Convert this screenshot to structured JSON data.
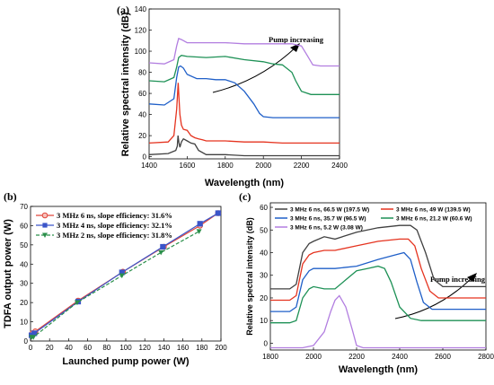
{
  "chart_data": [
    {
      "id": "a",
      "panel_label": "(a)",
      "type": "line",
      "xlabel": "Wavelength (nm)",
      "ylabel": "Relative spectral intensity (dB)",
      "xlim": [
        1400,
        2400
      ],
      "ylim": [
        -2,
        140
      ],
      "xticks": [
        1400,
        1600,
        1800,
        2000,
        2200,
        2400
      ],
      "yticks": [
        0,
        20,
        40,
        60,
        80,
        100,
        120,
        140
      ],
      "annotation": "Pump increasing",
      "series": [
        {
          "color": "#404040",
          "x": [
            1400,
            1500,
            1540,
            1548,
            1552,
            1556,
            1562,
            1570,
            1580,
            1600,
            1620,
            1640,
            1660,
            1700,
            1800,
            1900,
            2000,
            2100,
            2200,
            2300,
            2400
          ],
          "y": [
            2,
            3,
            6,
            10,
            20,
            14,
            9,
            14,
            17,
            15,
            13,
            12,
            6,
            2,
            2,
            1,
            1,
            1,
            1,
            1,
            1
          ]
        },
        {
          "color": "#e5331f",
          "x": [
            1400,
            1500,
            1530,
            1545,
            1553,
            1557,
            1562,
            1570,
            1580,
            1600,
            1620,
            1640,
            1660,
            1680,
            1700,
            1800,
            1900,
            2000,
            2100,
            2200,
            2300,
            2400
          ],
          "y": [
            13,
            14,
            20,
            45,
            70,
            55,
            40,
            30,
            26,
            25,
            20,
            18,
            17,
            16,
            15,
            15,
            14,
            14,
            13,
            13,
            13,
            13
          ]
        },
        {
          "color": "#1f5fc8",
          "x": [
            1400,
            1480,
            1530,
            1545,
            1555,
            1565,
            1580,
            1600,
            1650,
            1700,
            1750,
            1800,
            1850,
            1900,
            1950,
            1980,
            2000,
            2050,
            2100,
            2200,
            2300,
            2400
          ],
          "y": [
            50,
            49,
            55,
            75,
            85,
            86,
            84,
            78,
            74,
            74,
            73,
            73,
            70,
            62,
            50,
            41,
            38,
            37,
            37,
            37,
            37,
            37
          ]
        },
        {
          "color": "#1e9156",
          "x": [
            1400,
            1480,
            1530,
            1545,
            1555,
            1570,
            1600,
            1700,
            1800,
            1900,
            2000,
            2050,
            2100,
            2150,
            2170,
            2200,
            2250,
            2300,
            2400
          ],
          "y": [
            72,
            71,
            75,
            85,
            94,
            96,
            95,
            94,
            95,
            92,
            90,
            88,
            87,
            80,
            72,
            62,
            59,
            59,
            59
          ]
        },
        {
          "color": "#b27ee0",
          "x": [
            1400,
            1480,
            1530,
            1545,
            1555,
            1570,
            1600,
            1700,
            1800,
            1900,
            2000,
            2100,
            2150,
            2200,
            2230,
            2260,
            2300,
            2400
          ],
          "y": [
            89,
            88,
            92,
            105,
            112,
            111,
            108,
            108,
            108,
            107,
            107,
            107,
            107,
            105,
            96,
            87,
            86,
            86
          ]
        }
      ]
    },
    {
      "id": "b",
      "panel_label": "(b)",
      "type": "line",
      "xlabel": "Launched pump power (W)",
      "ylabel": "TDFA output power (W)",
      "xlim": [
        0,
        200
      ],
      "ylim": [
        0,
        70
      ],
      "xticks": [
        0,
        20,
        40,
        60,
        80,
        100,
        120,
        140,
        160,
        180,
        200
      ],
      "yticks": [
        0,
        10,
        20,
        30,
        40,
        50,
        60,
        70
      ],
      "series": [
        {
          "name": "3 MHz 6 ns, slope efficiency: 31.6%",
          "color": "#e0453a",
          "marker": "circle",
          "x": [
            2,
            5,
            50,
            97,
            140,
            178,
            197
          ],
          "y": [
            4,
            5,
            21,
            36,
            49,
            60,
            66.5
          ]
        },
        {
          "name": "3 MHz 4 ns, slope efficiency: 32.1%",
          "color": "#3b55c9",
          "marker": "square",
          "x": [
            1,
            4,
            50,
            96,
            139,
            178,
            197
          ],
          "y": [
            3,
            4,
            20.5,
            35.7,
            49,
            61,
            66.5
          ]
        },
        {
          "name": "3 MHz 2 ns, slope efficiency: 31.8%",
          "color": "#2a8f4a",
          "marker": "triangle-down",
          "x": [
            1,
            3,
            49,
            96,
            137,
            177
          ],
          "y": [
            2,
            2,
            20,
            34,
            46,
            57
          ]
        }
      ]
    },
    {
      "id": "c",
      "panel_label": "(c)",
      "type": "line",
      "xlabel": "Wavelength (nm)",
      "ylabel": "Relative spectral intensity (dB)",
      "xlim": [
        1800,
        2800
      ],
      "ylim": [
        -3,
        62
      ],
      "xticks": [
        1800,
        2000,
        2200,
        2400,
        2600,
        2800
      ],
      "yticks": [
        0,
        10,
        20,
        30,
        40,
        50,
        60
      ],
      "annotation": "Pump increasing",
      "series": [
        {
          "name": "3 MHz 6 ns, 66.5 W (197.5 W)",
          "color": "#404040",
          "x": [
            1800,
            1890,
            1920,
            1950,
            1980,
            2000,
            2050,
            2100,
            2200,
            2300,
            2400,
            2450,
            2480,
            2520,
            2560,
            2600,
            2700,
            2800
          ],
          "y": [
            24,
            24,
            26,
            40,
            44,
            45,
            47,
            46,
            49,
            51,
            52,
            52,
            50,
            40,
            28,
            25,
            25,
            25
          ]
        },
        {
          "name": "3 MHz 6 ns, 49 W (139.5 W)",
          "color": "#e5331f",
          "x": [
            1800,
            1890,
            1920,
            1950,
            1980,
            2000,
            2050,
            2100,
            2200,
            2300,
            2400,
            2440,
            2470,
            2500,
            2540,
            2580,
            2700,
            2800
          ],
          "y": [
            19,
            19,
            21,
            35,
            39,
            40,
            41,
            41,
            43,
            45,
            46,
            46,
            43,
            33,
            23,
            20,
            20,
            20
          ]
        },
        {
          "name": "3 MHz 6 ns, 35.7 W (96.5 W)",
          "color": "#1f5fc8",
          "x": [
            1800,
            1890,
            1920,
            1950,
            1980,
            2000,
            2050,
            2100,
            2200,
            2300,
            2380,
            2420,
            2450,
            2480,
            2510,
            2550,
            2700,
            2800
          ],
          "y": [
            14,
            14,
            16,
            28,
            32,
            33,
            33,
            33,
            34,
            37,
            39,
            40,
            37,
            27,
            18,
            15,
            15,
            15
          ]
        },
        {
          "name": "3 MHz 6 ns, 21.2 W (60.6 W)",
          "color": "#1e9156",
          "x": [
            1800,
            1890,
            1920,
            1950,
            1980,
            2000,
            2050,
            2100,
            2150,
            2200,
            2250,
            2300,
            2330,
            2360,
            2400,
            2450,
            2500,
            2800
          ],
          "y": [
            9,
            9,
            10,
            20,
            24,
            25,
            24,
            24,
            28,
            32,
            33,
            34,
            33,
            27,
            16,
            11,
            10,
            10
          ]
        },
        {
          "name": "3 MHz 6 ns, 5.2 W (3.08 W)",
          "color": "#b27ee0",
          "x": [
            1800,
            1950,
            2000,
            2050,
            2080,
            2100,
            2120,
            2150,
            2180,
            2200,
            2230,
            2300,
            2800
          ],
          "y": [
            -2,
            -2,
            -1,
            5,
            14,
            19,
            21,
            16,
            6,
            -1,
            -2,
            -2,
            -2
          ]
        }
      ]
    }
  ]
}
